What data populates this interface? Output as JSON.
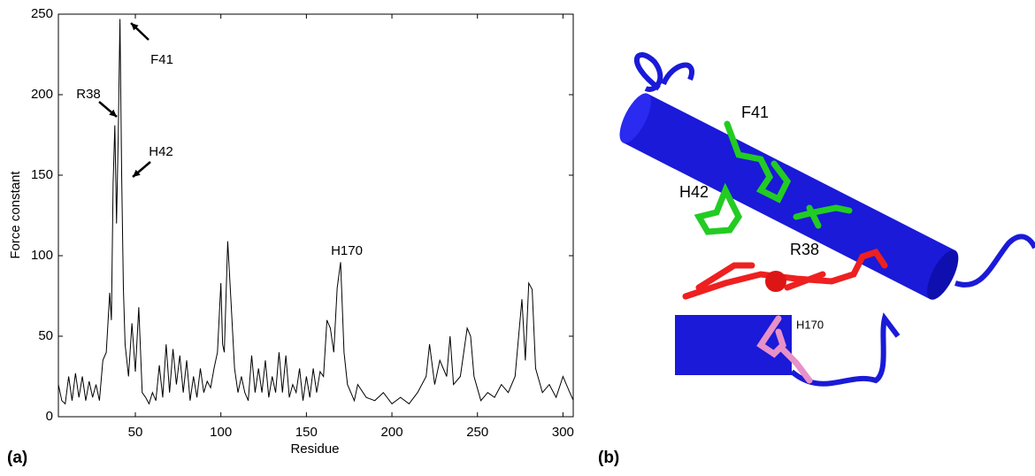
{
  "chart_data": {
    "type": "line",
    "xlabel": "Residue",
    "ylabel": "Force constant",
    "color": "#000000",
    "x": [
      1,
      3,
      5,
      7,
      9,
      11,
      13,
      15,
      17,
      19,
      21,
      23,
      25,
      27,
      29,
      31,
      33,
      35,
      36,
      37,
      38,
      39,
      40,
      41,
      42,
      43,
      44,
      46,
      48,
      50,
      52,
      54,
      56,
      58,
      60,
      62,
      64,
      66,
      68,
      70,
      72,
      74,
      76,
      78,
      80,
      82,
      84,
      86,
      88,
      90,
      92,
      94,
      96,
      98,
      100,
      101,
      102,
      104,
      106,
      108,
      110,
      112,
      114,
      116,
      118,
      120,
      122,
      124,
      126,
      128,
      130,
      132,
      134,
      136,
      138,
      140,
      142,
      144,
      146,
      148,
      150,
      152,
      154,
      156,
      158,
      160,
      162,
      164,
      166,
      168,
      170,
      172,
      174,
      176,
      178,
      180,
      185,
      190,
      195,
      200,
      205,
      210,
      215,
      220,
      222,
      225,
      228,
      232,
      234,
      236,
      240,
      244,
      246,
      248,
      252,
      256,
      260,
      264,
      268,
      272,
      276,
      278,
      280,
      282,
      284,
      288,
      292,
      296,
      300,
      304,
      307
    ],
    "values": [
      15,
      8,
      20,
      10,
      8,
      25,
      10,
      27,
      12,
      25,
      10,
      22,
      12,
      20,
      10,
      35,
      40,
      77,
      60,
      145,
      181,
      120,
      175,
      247,
      150,
      80,
      45,
      25,
      58,
      28,
      68,
      15,
      12,
      8,
      15,
      10,
      32,
      12,
      45,
      15,
      42,
      20,
      38,
      15,
      35,
      10,
      25,
      12,
      30,
      15,
      22,
      18,
      30,
      40,
      83,
      45,
      40,
      109,
      70,
      30,
      15,
      25,
      15,
      10,
      38,
      15,
      30,
      15,
      35,
      12,
      25,
      15,
      40,
      15,
      38,
      12,
      20,
      15,
      30,
      10,
      25,
      12,
      30,
      15,
      28,
      25,
      60,
      55,
      40,
      80,
      96,
      40,
      20,
      15,
      10,
      20,
      12,
      10,
      15,
      8,
      12,
      8,
      15,
      25,
      45,
      20,
      35,
      25,
      50,
      20,
      25,
      55,
      50,
      25,
      10,
      15,
      12,
      20,
      15,
      25,
      73,
      35,
      83,
      79,
      30,
      15,
      20,
      12,
      25,
      15,
      8
    ],
    "xlim": [
      5,
      306
    ],
    "ylim": [
      0,
      250
    ],
    "xticks": [
      50,
      100,
      150,
      200,
      250,
      300
    ],
    "yticks": [
      0,
      50,
      100,
      150,
      200,
      250
    ],
    "grid": false,
    "annotations": [
      {
        "text": "F41"
      },
      {
        "text": "R38"
      },
      {
        "text": "H42"
      },
      {
        "text": "H170"
      }
    ]
  },
  "panel_labels": [
    "(a)",
    "(b)"
  ],
  "structure_labels": [
    "F41",
    "H42",
    "R38",
    "H170"
  ]
}
